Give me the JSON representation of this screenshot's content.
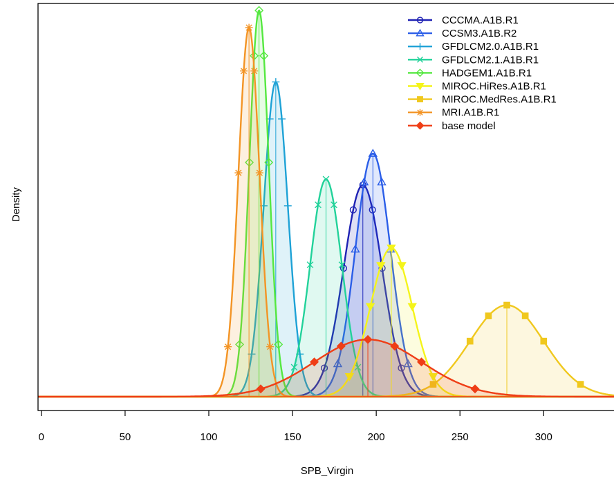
{
  "chart_data": {
    "type": "line",
    "title": "",
    "xlabel": "SPB_Virgin",
    "ylabel": "Density",
    "xlim": [
      -2,
      342
    ],
    "x_ticks": [
      0,
      50,
      100,
      150,
      200,
      250,
      300
    ],
    "y_ticks_shown": false,
    "legend_position": "top-right",
    "series": [
      {
        "name": "CCCMA.A1B.R1",
        "color": "#1f22b4",
        "marker": "circle",
        "mean": 192,
        "sd": 11.5,
        "peak": 0.74
      },
      {
        "name": "CCSM3.A1B.R2",
        "color": "#2b5ee8",
        "marker": "triangle",
        "mean": 198,
        "sd": 10.5,
        "peak": 0.85
      },
      {
        "name": "GFDLCM2.0.A1B.R1",
        "color": "#1ea2d6",
        "marker": "plus",
        "mean": 140,
        "sd": 7.2,
        "peak": 1.1
      },
      {
        "name": "GFDLCM2.1.A1B.R1",
        "color": "#22d29a",
        "marker": "cross",
        "mean": 170,
        "sd": 9.5,
        "peak": 0.76
      },
      {
        "name": "HADGEM1.A1B.R1",
        "color": "#55e840",
        "marker": "diamond-open",
        "mean": 130,
        "sd": 5.8,
        "peak": 1.35
      },
      {
        "name": "MIROC.HiRes.A1B.R1",
        "color": "#f4f41a",
        "marker": "triangle-down",
        "mean": 209,
        "sd": 12.5,
        "peak": 0.52
      },
      {
        "name": "MIROC.MedRes.A1B.R1",
        "color": "#f0c81e",
        "marker": "square",
        "mean": 278,
        "sd": 22.0,
        "peak": 0.32
      },
      {
        "name": "MRI.A1B.R1",
        "color": "#f39425",
        "marker": "asterisk",
        "mean": 124,
        "sd": 6.3,
        "peak": 1.29
      },
      {
        "name": "base model",
        "color": "#ef3e16",
        "marker": "diamond-filled",
        "mean": 195,
        "sd": 32.0,
        "peak": 0.2
      }
    ]
  }
}
